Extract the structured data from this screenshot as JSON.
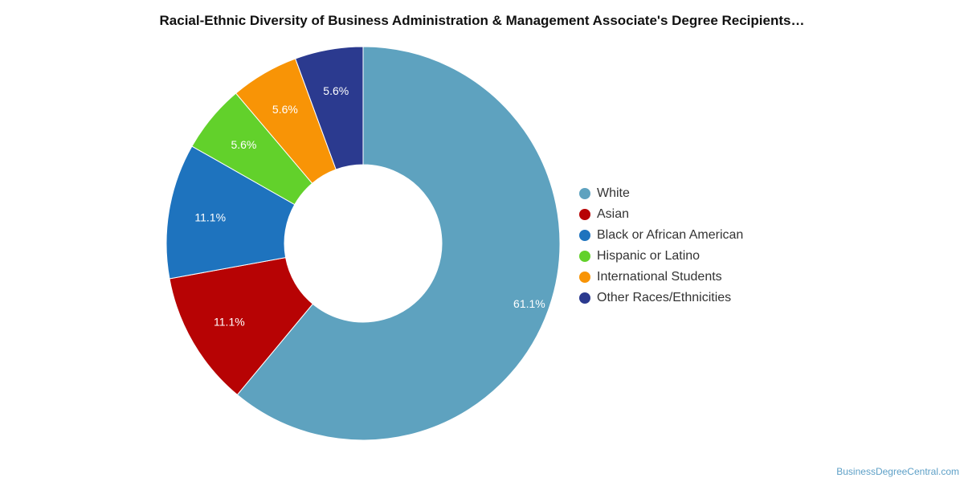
{
  "chart_data": {
    "type": "pie",
    "title": "Racial-Ethnic Diversity of Business Administration & Management Associate's Degree Recipients…",
    "categories": [
      "White",
      "Asian",
      "Black or African American",
      "Hispanic or Latino",
      "International Students",
      "Other Races/Ethnicities"
    ],
    "values": [
      61.1,
      11.1,
      11.1,
      5.6,
      5.6,
      5.6
    ],
    "value_labels": [
      "61.1%",
      "11.1%",
      "11.1%",
      "5.6%",
      "5.6%",
      "5.6%"
    ],
    "colors": [
      "#5ea2bf",
      "#b70304",
      "#1e73be",
      "#62d12b",
      "#f89406",
      "#2b3a8f"
    ],
    "donut": true,
    "legend_position": "right"
  },
  "footer": {
    "source": "BusinessDegreeCentral.com"
  }
}
